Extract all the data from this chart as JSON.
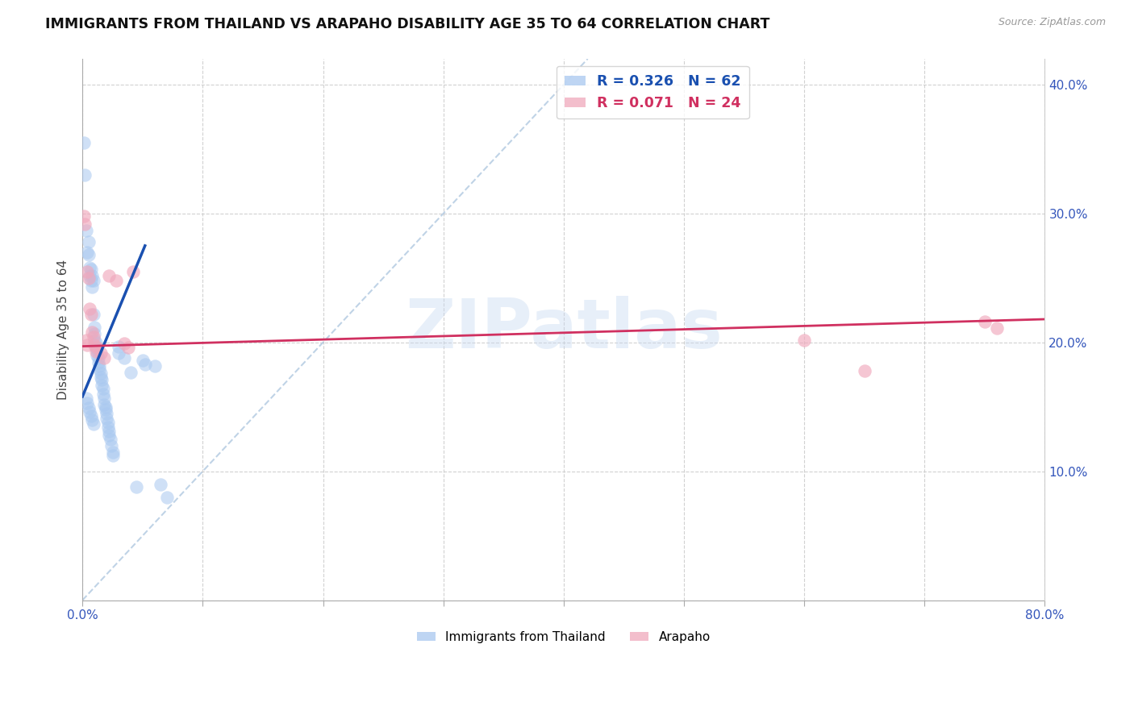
{
  "title": "IMMIGRANTS FROM THAILAND VS ARAPAHO DISABILITY AGE 35 TO 64 CORRELATION CHART",
  "source": "Source: ZipAtlas.com",
  "ylabel": "Disability Age 35 to 64",
  "xlim": [
    0,
    0.8
  ],
  "ylim": [
    0,
    0.42
  ],
  "xticks": [
    0.0,
    0.1,
    0.2,
    0.3,
    0.4,
    0.5,
    0.6,
    0.7,
    0.8
  ],
  "xticklabels": [
    "0.0%",
    "",
    "",
    "",
    "",
    "",
    "",
    "",
    "80.0%"
  ],
  "yticks_right": [
    0.1,
    0.2,
    0.3,
    0.4
  ],
  "yticklabels_right": [
    "10.0%",
    "20.0%",
    "30.0%",
    "40.0%"
  ],
  "watermark": "ZIPatlas",
  "blue_color": "#a8c8f0",
  "pink_color": "#f0a8bc",
  "blue_line_color": "#1a50b0",
  "pink_line_color": "#d03060",
  "blue_scatter": [
    [
      0.001,
      0.355
    ],
    [
      0.002,
      0.33
    ],
    [
      0.003,
      0.287
    ],
    [
      0.004,
      0.27
    ],
    [
      0.005,
      0.268
    ],
    [
      0.005,
      0.278
    ],
    [
      0.006,
      0.258
    ],
    [
      0.006,
      0.252
    ],
    [
      0.007,
      0.257
    ],
    [
      0.007,
      0.248
    ],
    [
      0.008,
      0.252
    ],
    [
      0.008,
      0.243
    ],
    [
      0.009,
      0.248
    ],
    [
      0.009,
      0.222
    ],
    [
      0.01,
      0.212
    ],
    [
      0.01,
      0.207
    ],
    [
      0.01,
      0.202
    ],
    [
      0.011,
      0.2
    ],
    [
      0.011,
      0.196
    ],
    [
      0.012,
      0.194
    ],
    [
      0.012,
      0.19
    ],
    [
      0.013,
      0.188
    ],
    [
      0.013,
      0.184
    ],
    [
      0.014,
      0.182
    ],
    [
      0.014,
      0.179
    ],
    [
      0.015,
      0.176
    ],
    [
      0.015,
      0.173
    ],
    [
      0.016,
      0.171
    ],
    [
      0.016,
      0.167
    ],
    [
      0.017,
      0.164
    ],
    [
      0.017,
      0.16
    ],
    [
      0.018,
      0.157
    ],
    [
      0.018,
      0.152
    ],
    [
      0.019,
      0.15
    ],
    [
      0.019,
      0.148
    ],
    [
      0.02,
      0.145
    ],
    [
      0.02,
      0.141
    ],
    [
      0.021,
      0.138
    ],
    [
      0.021,
      0.134
    ],
    [
      0.022,
      0.131
    ],
    [
      0.022,
      0.128
    ],
    [
      0.023,
      0.125
    ],
    [
      0.024,
      0.12
    ],
    [
      0.025,
      0.115
    ],
    [
      0.025,
      0.112
    ],
    [
      0.003,
      0.157
    ],
    [
      0.004,
      0.153
    ],
    [
      0.005,
      0.149
    ],
    [
      0.006,
      0.146
    ],
    [
      0.007,
      0.143
    ],
    [
      0.008,
      0.14
    ],
    [
      0.009,
      0.137
    ],
    [
      0.03,
      0.197
    ],
    [
      0.03,
      0.192
    ],
    [
      0.035,
      0.188
    ],
    [
      0.04,
      0.177
    ],
    [
      0.05,
      0.186
    ],
    [
      0.052,
      0.183
    ],
    [
      0.06,
      0.182
    ],
    [
      0.065,
      0.09
    ],
    [
      0.045,
      0.088
    ],
    [
      0.07,
      0.08
    ]
  ],
  "pink_scatter": [
    [
      0.001,
      0.298
    ],
    [
      0.002,
      0.292
    ],
    [
      0.004,
      0.255
    ],
    [
      0.005,
      0.25
    ],
    [
      0.006,
      0.226
    ],
    [
      0.007,
      0.222
    ],
    [
      0.008,
      0.208
    ],
    [
      0.009,
      0.204
    ],
    [
      0.01,
      0.198
    ],
    [
      0.011,
      0.193
    ],
    [
      0.012,
      0.196
    ],
    [
      0.015,
      0.192
    ],
    [
      0.018,
      0.188
    ],
    [
      0.022,
      0.252
    ],
    [
      0.028,
      0.248
    ],
    [
      0.035,
      0.199
    ],
    [
      0.038,
      0.196
    ],
    [
      0.042,
      0.255
    ],
    [
      0.003,
      0.202
    ],
    [
      0.004,
      0.198
    ],
    [
      0.6,
      0.202
    ],
    [
      0.65,
      0.178
    ],
    [
      0.75,
      0.216
    ],
    [
      0.76,
      0.211
    ]
  ],
  "blue_line_pts": [
    [
      0.0,
      0.158
    ],
    [
      0.052,
      0.275
    ]
  ],
  "pink_line_pts": [
    [
      0.0,
      0.197
    ],
    [
      0.8,
      0.218
    ]
  ],
  "diag_line_pts": [
    [
      0.0,
      0.0
    ],
    [
      0.42,
      0.42
    ]
  ]
}
